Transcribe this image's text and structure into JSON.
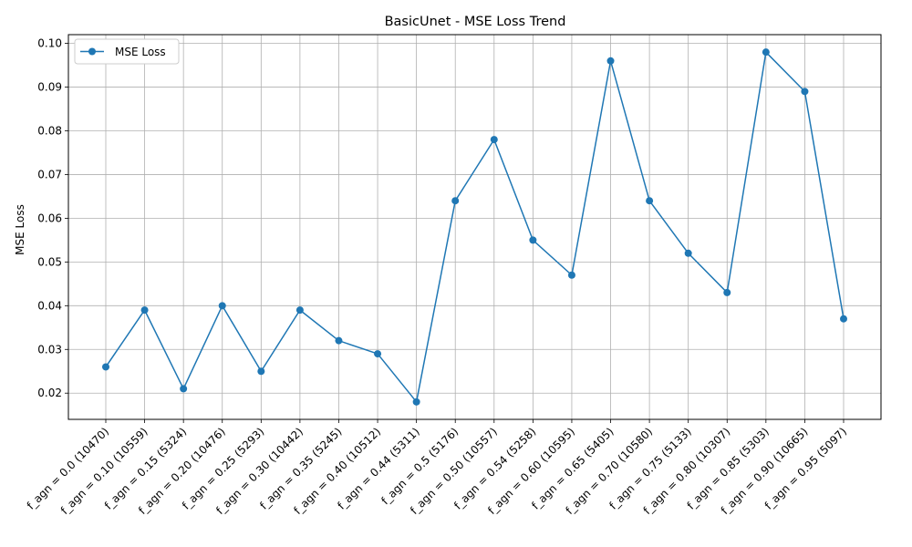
{
  "chart_data": {
    "type": "line",
    "title": "BasicUnet - MSE Loss Trend",
    "xlabel": "",
    "ylabel": "MSE Loss",
    "categories": [
      "f_agn = 0.0 (10470)",
      "f_agn = 0.10 (10559)",
      "f_agn = 0.15 (5324)",
      "f_agn = 0.20 (10476)",
      "f_agn = 0.25 (5293)",
      "f_agn = 0.30 (10442)",
      "f_agn = 0.35 (5245)",
      "f_agn = 0.40 (10512)",
      "f_agn = 0.44 (5311)",
      "f_agn = 0.5 (5176)",
      "f_agn = 0.50 (10557)",
      "f_agn = 0.54 (5258)",
      "f_agn = 0.60 (10595)",
      "f_agn = 0.65 (5405)",
      "f_agn = 0.70 (10580)",
      "f_agn = 0.75 (5133)",
      "f_agn = 0.80 (10307)",
      "f_agn = 0.85 (5303)",
      "f_agn = 0.90 (10665)",
      "f_agn = 0.95 (5097)"
    ],
    "series": [
      {
        "name": "MSE Loss",
        "values": [
          0.026,
          0.039,
          0.021,
          0.04,
          0.025,
          0.039,
          0.032,
          0.029,
          0.018,
          0.064,
          0.078,
          0.055,
          0.047,
          0.096,
          0.064,
          0.052,
          0.043,
          0.098,
          0.089,
          0.037
        ]
      }
    ],
    "ylim": [
      0.014,
      0.102
    ],
    "yticks": [
      "0.02",
      "0.03",
      "0.04",
      "0.05",
      "0.06",
      "0.07",
      "0.08",
      "0.09",
      "0.10"
    ],
    "grid": true,
    "legend_position": "top-left",
    "marker": "circle",
    "colors": {
      "series": "#1f77b4",
      "grid": "#b0b0b0",
      "axis": "#000000"
    }
  }
}
